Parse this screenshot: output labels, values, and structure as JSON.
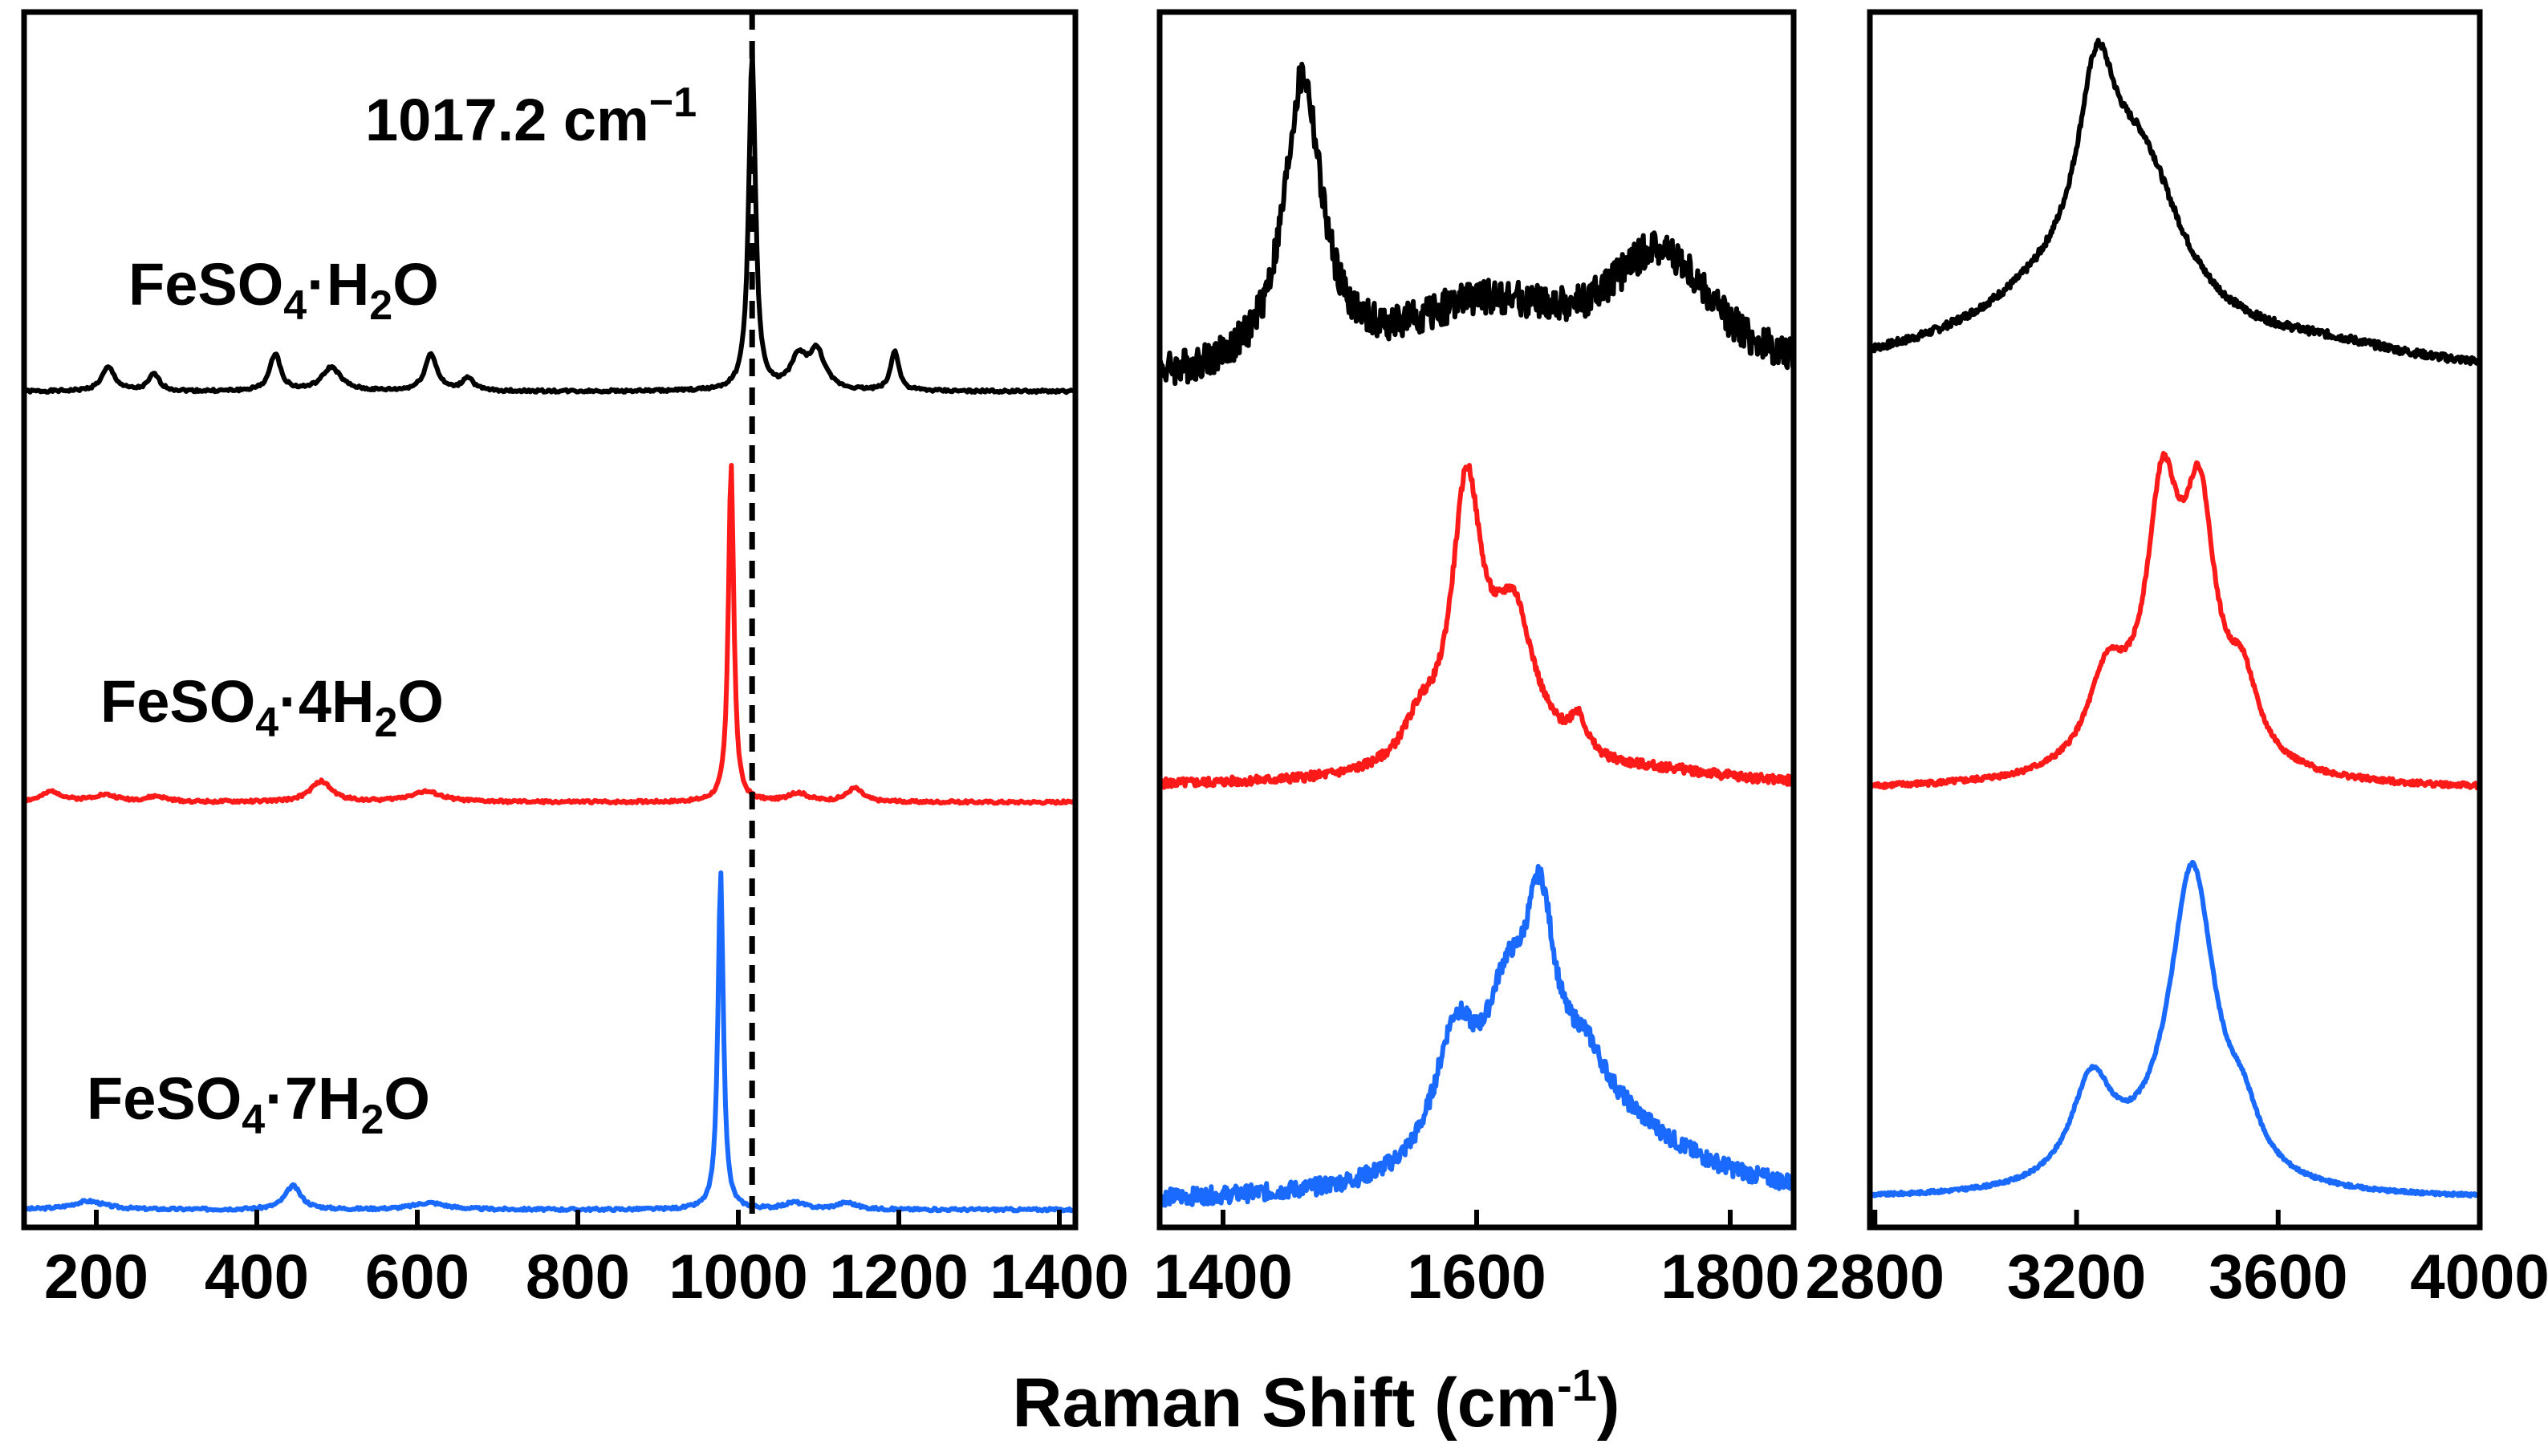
{
  "chart_data": {
    "type": "line",
    "xlabel": "Raman Shift (cm",
    "xlabel_sup": "-1",
    "xlabel_close": ")",
    "reference_line": {
      "x": 1017.2,
      "label": "1017.2 cm",
      "label_sup": "−1"
    },
    "colors": {
      "FeSO4·H2O": "#000000",
      "FeSO4·4H2O": "#ff1a1a",
      "FeSO4·7H2O": "#1a6aff"
    },
    "sample_labels": [
      {
        "base": "FeSO",
        "sub1": "4",
        "mid": "·H",
        "sub2": "2",
        "end": "O"
      },
      {
        "base": "FeSO",
        "sub1": "4",
        "mid": "·4H",
        "sub2": "2",
        "end": "O"
      },
      {
        "base": "FeSO",
        "sub1": "4",
        "mid": "·7H",
        "sub2": "2",
        "end": "O"
      }
    ],
    "panels": [
      {
        "xlim": [
          110,
          1420
        ],
        "ticks": [
          200,
          400,
          600,
          800,
          1000,
          1200,
          1400
        ],
        "tick_labels": [
          "200",
          "400",
          "600",
          "800",
          "1000",
          "1200",
          "1400"
        ],
        "series": [
          {
            "name": "FeSO4·H2O",
            "color": "#000000",
            "noise": 0.004,
            "seed": 1,
            "peaks": [
              [
                215,
                0.07,
                10
              ],
              [
                272,
                0.05,
                8
              ],
              [
                423,
                0.11,
                8
              ],
              [
                493,
                0.07,
                14
              ],
              [
                617,
                0.11,
                9
              ],
              [
                663,
                0.04,
                8
              ],
              [
                1017.2,
                1.0,
                5
              ],
              [
                1075,
                0.09,
                12
              ],
              [
                1098,
                0.11,
                12
              ],
              [
                1195,
                0.12,
                6
              ]
            ]
          },
          {
            "name": "FeSO4·4H2O",
            "color": "#ff1a1a",
            "noise": 0.004,
            "seed": 2,
            "peaks": [
              [
                145,
                0.03,
                15
              ],
              [
                210,
                0.02,
                20
              ],
              [
                275,
                0.015,
                15
              ],
              [
                480,
                0.06,
                16
              ],
              [
                610,
                0.03,
                25
              ],
              [
                991,
                1.0,
                4
              ],
              [
                1075,
                0.025,
                15
              ],
              [
                1145,
                0.04,
                12
              ]
            ]
          },
          {
            "name": "FeSO4·7H2O",
            "color": "#1a6aff",
            "noise": 0.004,
            "seed": 3,
            "peaks": [
              [
                190,
                0.025,
                25
              ],
              [
                445,
                0.07,
                12
              ],
              [
                615,
                0.02,
                25
              ],
              [
                978,
                1.0,
                4
              ],
              [
                1070,
                0.02,
                15
              ],
              [
                1135,
                0.02,
                15
              ]
            ]
          }
        ]
      },
      {
        "xlim": [
          1350,
          1850
        ],
        "ticks": [
          1400,
          1600,
          1800
        ],
        "tick_labels": [
          "1400",
          "1600",
          "1800"
        ],
        "series": [
          {
            "name": "FeSO4·H2O",
            "color": "#000000",
            "noise": 0.05,
            "seed": 4,
            "peaks": [
              [
                1463,
                0.82,
                18
              ],
              [
                1605,
                0.2,
                80
              ],
              [
                1745,
                0.34,
                50
              ]
            ]
          },
          {
            "name": "FeSO4·4H2O",
            "color": "#ff1a1a",
            "noise": 0.015,
            "seed": 5,
            "peaks": [
              [
                1555,
                0.12,
                15
              ],
              [
                1592,
                0.85,
                14
              ],
              [
                1630,
                0.35,
                18
              ],
              [
                1680,
                0.12,
                8
              ],
              [
                1620,
                0.2,
                40
              ],
              [
                1750,
                0.03,
                60
              ]
            ]
          },
          {
            "name": "FeSO4·7H2O",
            "color": "#1a6aff",
            "noise": 0.04,
            "seed": 6,
            "peaks": [
              [
                1583,
                0.6,
                20
              ],
              [
                1623,
                0.6,
                20
              ],
              [
                1650,
                0.95,
                15
              ],
              [
                1685,
                0.25,
                20
              ],
              [
                1700,
                0.35,
                80
              ]
            ]
          }
        ]
      },
      {
        "xlim": [
          2790,
          4000
        ],
        "ticks": [
          2800,
          3200,
          3600,
          4000
        ],
        "tick_labels": [
          "2800",
          "3200",
          "3600",
          "4000"
        ],
        "series": [
          {
            "name": "FeSO4·H2O",
            "color": "#000000",
            "noise": 0.012,
            "seed": 7,
            "peaks": [
              [
                3240,
                0.55,
                45
              ],
              [
                3330,
                0.45,
                95
              ],
              [
                3200,
                0.25,
                250
              ],
              [
                3700,
                0.05,
                200
              ]
            ]
          },
          {
            "name": "FeSO4·4H2O",
            "color": "#ff1a1a",
            "noise": 0.007,
            "seed": 8,
            "peaks": [
              [
                3370,
                0.52,
                35
              ],
              [
                3445,
                0.52,
                35
              ],
              [
                3260,
                0.22,
                45
              ],
              [
                3530,
                0.18,
                35
              ],
              [
                3400,
                0.28,
                95
              ]
            ]
          },
          {
            "name": "FeSO4·7H2O",
            "color": "#1a6aff",
            "noise": 0.004,
            "seed": 9,
            "peaks": [
              [
                3230,
                0.25,
                50
              ],
              [
                3430,
                0.78,
                55
              ],
              [
                3530,
                0.12,
                40
              ],
              [
                3350,
                0.05,
                120
              ]
            ]
          }
        ]
      }
    ]
  }
}
